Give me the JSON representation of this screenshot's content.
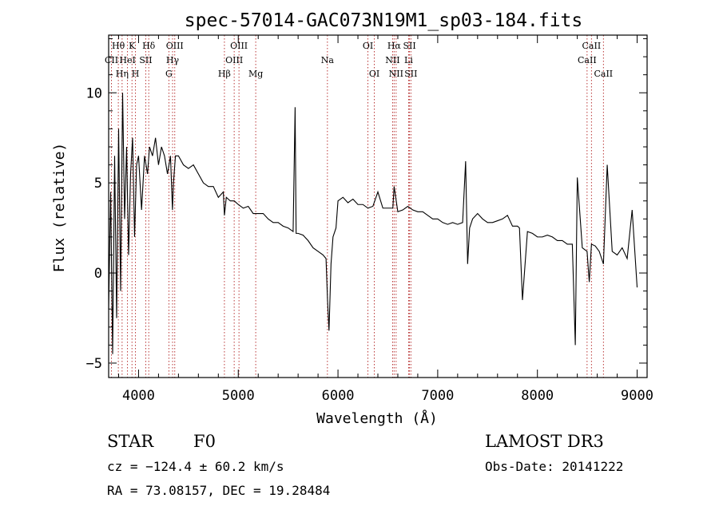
{
  "chart_data": {
    "type": "line",
    "title": "spec-57014-GAC073N19M1_sp03-184.fits",
    "xlabel": "Wavelength (Å)",
    "ylabel": "Flux (relative)",
    "xlim": [
      3700,
      9100
    ],
    "ylim": [
      -5.8,
      13.2
    ],
    "x_ticks": [
      4000,
      5000,
      6000,
      7000,
      8000,
      9000
    ],
    "y_ticks": [
      -5,
      0,
      5,
      10
    ],
    "series": [
      {
        "name": "flux",
        "x": [
          3700,
          3720,
          3740,
          3760,
          3780,
          3800,
          3820,
          3840,
          3860,
          3880,
          3900,
          3920,
          3940,
          3960,
          3980,
          4000,
          4030,
          4060,
          4090,
          4110,
          4140,
          4170,
          4200,
          4230,
          4260,
          4290,
          4320,
          4340,
          4350,
          4370,
          4400,
          4450,
          4500,
          4550,
          4600,
          4650,
          4700,
          4750,
          4800,
          4850,
          4861,
          4880,
          4920,
          4960,
          5000,
          5050,
          5100,
          5150,
          5200,
          5250,
          5300,
          5350,
          5400,
          5450,
          5500,
          5550,
          5570,
          5580,
          5600,
          5650,
          5700,
          5750,
          5800,
          5850,
          5880,
          5895,
          5910,
          5930,
          5950,
          5980,
          6000,
          6050,
          6100,
          6150,
          6200,
          6250,
          6300,
          6350,
          6400,
          6450,
          6500,
          6550,
          6563,
          6600,
          6650,
          6700,
          6750,
          6800,
          6850,
          6900,
          6950,
          7000,
          7050,
          7100,
          7150,
          7200,
          7250,
          7280,
          7300,
          7320,
          7350,
          7400,
          7450,
          7500,
          7550,
          7600,
          7650,
          7700,
          7750,
          7800,
          7820,
          7850,
          7900,
          7950,
          8000,
          8050,
          8100,
          8150,
          8200,
          8250,
          8300,
          8350,
          8380,
          8400,
          8450,
          8498,
          8520,
          8542,
          8580,
          8620,
          8662,
          8700,
          8750,
          8800,
          8850,
          8900,
          8950,
          9000
        ],
        "values": [
          -2.0,
          4.5,
          -4.5,
          6.5,
          -2.5,
          8.0,
          -1.0,
          10.0,
          3.0,
          7.0,
          1.0,
          5.5,
          7.5,
          2.0,
          6.0,
          6.5,
          3.5,
          6.5,
          5.5,
          7.0,
          6.5,
          7.5,
          6.0,
          7.0,
          6.5,
          5.5,
          6.5,
          3.5,
          5.0,
          6.5,
          6.5,
          6.0,
          5.8,
          6.0,
          5.5,
          5.0,
          4.8,
          4.8,
          4.2,
          4.5,
          3.2,
          4.2,
          4.0,
          4.0,
          3.8,
          3.6,
          3.7,
          3.3,
          3.3,
          3.3,
          3.0,
          2.8,
          2.8,
          2.6,
          2.5,
          2.3,
          9.2,
          2.2,
          2.2,
          2.1,
          1.8,
          1.4,
          1.2,
          1.0,
          0.8,
          -1.5,
          -3.2,
          0.5,
          2.0,
          2.5,
          4.0,
          4.2,
          3.9,
          4.1,
          3.8,
          3.8,
          3.6,
          3.7,
          4.5,
          3.6,
          3.6,
          3.6,
          4.8,
          3.4,
          3.5,
          3.7,
          3.5,
          3.4,
          3.4,
          3.2,
          3.0,
          3.0,
          2.8,
          2.7,
          2.8,
          2.7,
          2.8,
          6.2,
          0.5,
          2.5,
          3.0,
          3.3,
          3.0,
          2.8,
          2.8,
          2.9,
          3.0,
          3.2,
          2.6,
          2.6,
          2.5,
          -1.5,
          2.3,
          2.2,
          2.0,
          2.0,
          2.1,
          2.0,
          1.8,
          1.8,
          1.6,
          1.6,
          -4.0,
          5.3,
          1.4,
          1.2,
          -0.5,
          1.6,
          1.5,
          1.2,
          0.5,
          6.0,
          1.2,
          1.0,
          1.4,
          0.8,
          3.5,
          -0.8
        ]
      }
    ],
    "lines": [
      {
        "label": "CII",
        "x": 3728,
        "row": 2
      },
      {
        "label": "Hθ",
        "x": 3797,
        "row": 1
      },
      {
        "label": "Hη",
        "x": 3835,
        "row": 3
      },
      {
        "label": "HeI",
        "x": 3889,
        "row": 2
      },
      {
        "label": "K",
        "x": 3934,
        "row": 1
      },
      {
        "label": "H",
        "x": 3969,
        "row": 3
      },
      {
        "label": "SII",
        "x": 4072,
        "row": 2
      },
      {
        "label": "Hδ",
        "x": 4102,
        "row": 1
      },
      {
        "label": "G",
        "x": 4304,
        "row": 3
      },
      {
        "label": "Hγ",
        "x": 4341,
        "row": 2
      },
      {
        "label": "OIII",
        "x": 4363,
        "row": 1
      },
      {
        "label": "Hβ",
        "x": 4861,
        "row": 3
      },
      {
        "label": "OIII",
        "x": 4959,
        "row": 2
      },
      {
        "label": "OIII",
        "x": 5007,
        "row": 1
      },
      {
        "label": "Mg",
        "x": 5175,
        "row": 3
      },
      {
        "label": "Na",
        "x": 5894,
        "row": 2
      },
      {
        "label": "OI",
        "x": 6300,
        "row": 1
      },
      {
        "label": "OI",
        "x": 6364,
        "row": 3
      },
      {
        "label": "NII",
        "x": 6548,
        "row": 2
      },
      {
        "label": "Hα",
        "x": 6563,
        "row": 1
      },
      {
        "label": "NII",
        "x": 6583,
        "row": 3
      },
      {
        "label": "Li",
        "x": 6708,
        "row": 2
      },
      {
        "label": "SII",
        "x": 6717,
        "row": 1
      },
      {
        "label": "SII",
        "x": 6731,
        "row": 3
      },
      {
        "label": "CaII",
        "x": 8498,
        "row": 2
      },
      {
        "label": "CaII",
        "x": 8542,
        "row": 1
      },
      {
        "label": "CaII",
        "x": 8662,
        "row": 3
      }
    ]
  },
  "info": {
    "object_class": "STAR",
    "subclass": "F0",
    "survey": "LAMOST DR3",
    "cz": "cz = −124.4 ± 60.2 km/s",
    "obs_date": "Obs-Date: 20141222",
    "coords": "RA =  73.08157, DEC =  19.28484"
  },
  "colors": {
    "line": "#000000",
    "marker": "#b22222"
  }
}
